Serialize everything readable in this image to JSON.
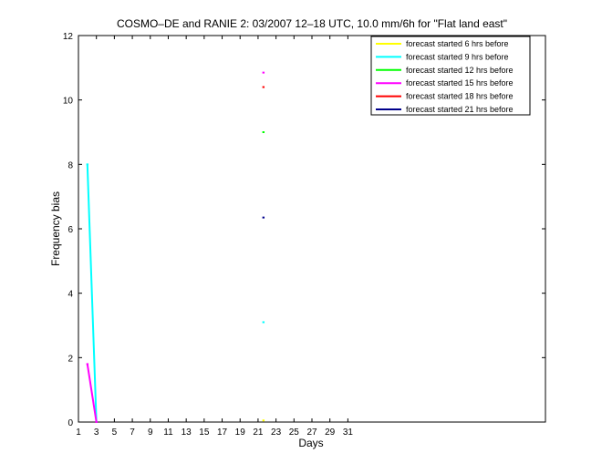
{
  "chart_data": {
    "type": "line",
    "title": "COSMO–DE and RANIE 2: 03/2007 12–18 UTC, 10.0 mm/6h for \"Flat land east\"",
    "xlabel": "Days",
    "ylabel": "Frequency bias",
    "xlim": [
      1,
      53
    ],
    "ylim": [
      0,
      12
    ],
    "x_ticks": [
      1,
      3,
      5,
      7,
      9,
      11,
      13,
      15,
      17,
      19,
      21,
      23,
      25,
      27,
      29,
      31
    ],
    "y_ticks": [
      0,
      2,
      4,
      6,
      8,
      10,
      12
    ],
    "grid": false,
    "legend_position": "top-right",
    "series": [
      {
        "name": "forecast started 6 hrs before",
        "color": "#ffff00",
        "points": [
          [
            21.6,
            0.05
          ]
        ]
      },
      {
        "name": "forecast started 9 hrs before",
        "color": "#00ffff",
        "points": [
          [
            2,
            8.0
          ],
          [
            3,
            0
          ],
          [
            21.6,
            3.1
          ]
        ]
      },
      {
        "name": "forecast started 12 hrs before",
        "color": "#00ff00",
        "points": [
          [
            21.6,
            9.0
          ]
        ]
      },
      {
        "name": "forecast started 15 hrs before",
        "color": "#ff00ff",
        "points": [
          [
            2,
            1.8
          ],
          [
            3,
            0
          ],
          [
            21.6,
            10.85
          ]
        ]
      },
      {
        "name": "forecast started 18 hrs before",
        "color": "#ff0000",
        "points": [
          [
            21.6,
            10.4
          ]
        ]
      },
      {
        "name": "forecast started 21 hrs before",
        "color": "#00008b",
        "points": [
          [
            21.6,
            6.35
          ]
        ]
      }
    ]
  }
}
